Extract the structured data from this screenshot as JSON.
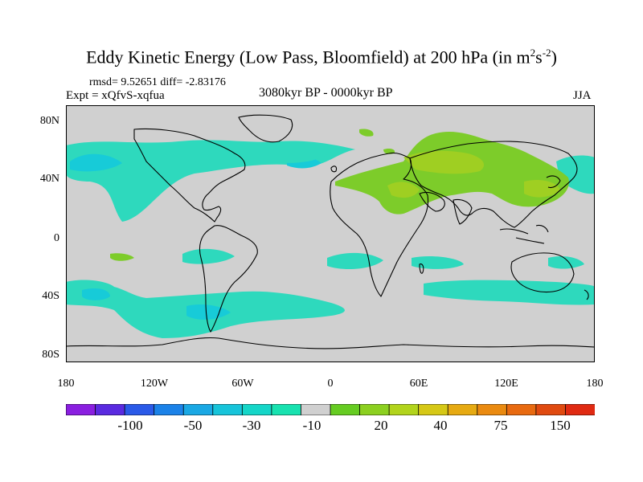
{
  "title": {
    "main": "Eddy Kinetic Energy (Low Pass, Bloomfield) at 200 hPa (in m",
    "sup1": "2",
    "mid": "s",
    "sup2": "-2",
    "end": ")"
  },
  "rmsd_text": "rmsd= 9.52651  diff= -2.83176",
  "expt_text": "Expt = xQfvS-xqfua",
  "period_text": "3080kyr BP - 0000kyr BP",
  "season": "JJA",
  "y_axis": [
    "80N",
    "40N",
    "0",
    "40S",
    "80S"
  ],
  "x_axis": [
    "180",
    "120W",
    "60W",
    "0",
    "60E",
    "120E",
    "180"
  ],
  "colorbar": {
    "labels": [
      "-100",
      "-50",
      "-30",
      "-10",
      "20",
      "40",
      "75",
      "150"
    ],
    "colors": [
      "#8a1fe0",
      "#5a2ae0",
      "#2a5ae8",
      "#1b82e8",
      "#1aa8e4",
      "#17c4da",
      "#15d6c8",
      "#18e2b0",
      "#d0d0d0",
      "#66cc22",
      "#8cd020",
      "#b2d41c",
      "#d6c816",
      "#e6aa12",
      "#ea8a10",
      "#e86a10",
      "#e04a10",
      "#e02a12"
    ]
  },
  "colors": {
    "land_bg": "#d0d0d0",
    "neg_light": "#2ed9bd",
    "neg_mid": "#17cbd8",
    "neg_dark": "#1aaee4",
    "pos_light": "#7dcc2a",
    "pos_mid": "#9fcf22",
    "pos_dark": "#c8cf1c"
  }
}
